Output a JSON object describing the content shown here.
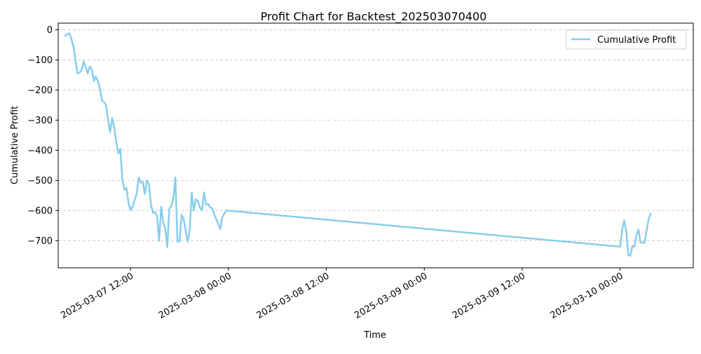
{
  "chart_data": {
    "type": "line",
    "title": "Profit Chart for Backtest_202503070400",
    "xlabel": "Time",
    "ylabel": "Cumulative Profit",
    "x_range": [
      "2025-03-07 03:08",
      "2025-03-10 08:58"
    ],
    "ylim": [
      -790,
      22
    ],
    "x_ticks": [
      {
        "label": "2025-03-07 12:00",
        "t": "2025-03-07 12:00"
      },
      {
        "label": "2025-03-08 00:00",
        "t": "2025-03-08 00:00"
      },
      {
        "label": "2025-03-08 12:00",
        "t": "2025-03-08 12:00"
      },
      {
        "label": "2025-03-09 00:00",
        "t": "2025-03-09 00:00"
      },
      {
        "label": "2025-03-09 12:00",
        "t": "2025-03-09 12:00"
      },
      {
        "label": "2025-03-10 00:00",
        "t": "2025-03-10 00:00"
      }
    ],
    "y_ticks": [
      0,
      -100,
      -200,
      -300,
      -400,
      -500,
      -600,
      -700
    ],
    "grid": "y-dashed",
    "legend": "top-right",
    "color": "#87CEEB",
    "series": [
      {
        "name": "Cumulative Profit",
        "points": [
          [
            "2025-03-07 04:00",
            -20
          ],
          [
            "2025-03-07 04:15",
            -14
          ],
          [
            "2025-03-07 04:30",
            -12
          ],
          [
            "2025-03-07 04:45",
            -30
          ],
          [
            "2025-03-07 05:00",
            -55
          ],
          [
            "2025-03-07 05:15",
            -100
          ],
          [
            "2025-03-07 05:30",
            -145
          ],
          [
            "2025-03-07 05:45",
            -142
          ],
          [
            "2025-03-07 06:00",
            -135
          ],
          [
            "2025-03-07 06:15",
            -105
          ],
          [
            "2025-03-07 06:30",
            -125
          ],
          [
            "2025-03-07 06:45",
            -145
          ],
          [
            "2025-03-07 07:00",
            -122
          ],
          [
            "2025-03-07 07:15",
            -130
          ],
          [
            "2025-03-07 07:30",
            -170
          ],
          [
            "2025-03-07 07:45",
            -155
          ],
          [
            "2025-03-07 08:00",
            -170
          ],
          [
            "2025-03-07 08:15",
            -195
          ],
          [
            "2025-03-07 08:30",
            -235
          ],
          [
            "2025-03-07 08:45",
            -240
          ],
          [
            "2025-03-07 09:00",
            -250
          ],
          [
            "2025-03-07 09:15",
            -300
          ],
          [
            "2025-03-07 09:30",
            -340
          ],
          [
            "2025-03-07 09:45",
            -293
          ],
          [
            "2025-03-07 10:00",
            -325
          ],
          [
            "2025-03-07 10:15",
            -370
          ],
          [
            "2025-03-07 10:30",
            -410
          ],
          [
            "2025-03-07 10:45",
            -395
          ],
          [
            "2025-03-07 11:00",
            -500
          ],
          [
            "2025-03-07 11:15",
            -530
          ],
          [
            "2025-03-07 11:30",
            -525
          ],
          [
            "2025-03-07 11:45",
            -575
          ],
          [
            "2025-03-07 12:00",
            -598
          ],
          [
            "2025-03-07 12:15",
            -588
          ],
          [
            "2025-03-07 12:30",
            -565
          ],
          [
            "2025-03-07 12:45",
            -545
          ],
          [
            "2025-03-07 13:00",
            -490
          ],
          [
            "2025-03-07 13:15",
            -508
          ],
          [
            "2025-03-07 13:30",
            -505
          ],
          [
            "2025-03-07 13:45",
            -545
          ],
          [
            "2025-03-07 14:00",
            -500
          ],
          [
            "2025-03-07 14:15",
            -512
          ],
          [
            "2025-03-07 14:30",
            -580
          ],
          [
            "2025-03-07 14:45",
            -608
          ],
          [
            "2025-03-07 15:00",
            -605
          ],
          [
            "2025-03-07 15:15",
            -617
          ],
          [
            "2025-03-07 15:30",
            -700
          ],
          [
            "2025-03-07 15:45",
            -588
          ],
          [
            "2025-03-07 16:00",
            -640
          ],
          [
            "2025-03-07 16:15",
            -660
          ],
          [
            "2025-03-07 16:30",
            -722
          ],
          [
            "2025-03-07 16:45",
            -595
          ],
          [
            "2025-03-07 17:00",
            -585
          ],
          [
            "2025-03-07 17:15",
            -560
          ],
          [
            "2025-03-07 17:30",
            -490
          ],
          [
            "2025-03-07 17:45",
            -703
          ],
          [
            "2025-03-07 18:00",
            -703
          ],
          [
            "2025-03-07 18:15",
            -615
          ],
          [
            "2025-03-07 18:30",
            -628
          ],
          [
            "2025-03-07 18:45",
            -665
          ],
          [
            "2025-03-07 19:00",
            -703
          ],
          [
            "2025-03-07 19:15",
            -665
          ],
          [
            "2025-03-07 19:30",
            -540
          ],
          [
            "2025-03-07 19:45",
            -600
          ],
          [
            "2025-03-07 20:00",
            -563
          ],
          [
            "2025-03-07 20:15",
            -568
          ],
          [
            "2025-03-07 20:30",
            -590
          ],
          [
            "2025-03-07 20:45",
            -600
          ],
          [
            "2025-03-07 21:00",
            -540
          ],
          [
            "2025-03-07 21:15",
            -580
          ],
          [
            "2025-03-07 21:30",
            -578
          ],
          [
            "2025-03-07 21:45",
            -590
          ],
          [
            "2025-03-07 22:00",
            -592
          ],
          [
            "2025-03-07 22:15",
            -612
          ],
          [
            "2025-03-07 22:30",
            -628
          ],
          [
            "2025-03-07 22:45",
            -645
          ],
          [
            "2025-03-07 23:00",
            -662
          ],
          [
            "2025-03-07 23:15",
            -622
          ],
          [
            "2025-03-07 23:30",
            -610
          ],
          [
            "2025-03-07 23:45",
            -600
          ],
          [
            "2025-03-10 00:00",
            -720
          ],
          [
            "2025-03-10 00:15",
            -665
          ],
          [
            "2025-03-10 00:30",
            -633
          ],
          [
            "2025-03-10 00:45",
            -668
          ],
          [
            "2025-03-10 01:00",
            -748
          ],
          [
            "2025-03-10 01:15",
            -750
          ],
          [
            "2025-03-10 01:30",
            -718
          ],
          [
            "2025-03-10 01:45",
            -720
          ],
          [
            "2025-03-10 02:00",
            -680
          ],
          [
            "2025-03-10 02:15",
            -663
          ],
          [
            "2025-03-10 02:30",
            -705
          ],
          [
            "2025-03-10 02:45",
            -707
          ],
          [
            "2025-03-10 03:00",
            -707
          ],
          [
            "2025-03-10 03:15",
            -665
          ],
          [
            "2025-03-10 03:30",
            -628
          ],
          [
            "2025-03-10 03:45",
            -610
          ]
        ]
      }
    ]
  }
}
